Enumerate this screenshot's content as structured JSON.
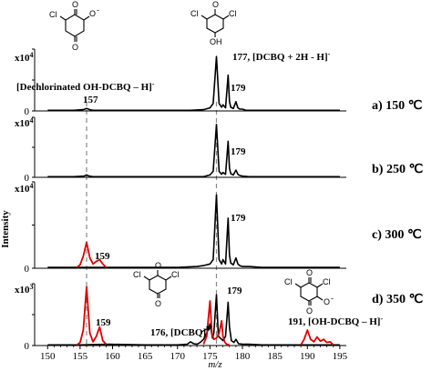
{
  "chart_data": [
    {
      "type": "line",
      "panel": "a",
      "title": "a) 150 ℃",
      "scale": "x10",
      "scale_exp": "4",
      "ylim": [
        0,
        1.0
      ],
      "series": [
        {
          "color": "#000000",
          "x": [
            150,
            152,
            154,
            155.5,
            156,
            156.5,
            157,
            160,
            170,
            172,
            174,
            175,
            175.5,
            176,
            176.4,
            176.8,
            177,
            177.4,
            177.8,
            178,
            178.2,
            178.6,
            179,
            179.3,
            179.6,
            180,
            180.5,
            181,
            183,
            187,
            190,
            195
          ],
          "y": [
            0.01,
            0.01,
            0.01,
            0.02,
            0.04,
            0.02,
            0.01,
            0.01,
            0.01,
            0.01,
            0.02,
            0.05,
            0.12,
            0.88,
            0.12,
            0.06,
            0.1,
            0.05,
            0.58,
            0.15,
            0.06,
            0.04,
            0.15,
            0.05,
            0.03,
            0.03,
            0.01,
            0.01,
            0.01,
            0.01,
            0.01,
            0.01
          ]
        }
      ],
      "annotations": [
        {
          "text": "177, [DCBQ + 2H - H]",
          "sup": "-"
        },
        {
          "text": "179"
        },
        {
          "text": "[Dechlorinated  OH-DCBQ – H]",
          "sup": "-"
        },
        {
          "text": "157"
        }
      ]
    },
    {
      "type": "line",
      "panel": "b",
      "title": "b) 250 ℃",
      "scale": "x10",
      "scale_exp": "4",
      "ylim": [
        0,
        1.0
      ],
      "series": [
        {
          "color": "#000000",
          "x": [
            150,
            154,
            155.6,
            156,
            156.4,
            157,
            170,
            174,
            175,
            175.5,
            176,
            176.4,
            176.8,
            177,
            177.4,
            177.8,
            178,
            178.2,
            178.6,
            179,
            179.3,
            179.6,
            180,
            181,
            195
          ],
          "y": [
            0.01,
            0.01,
            0.02,
            0.04,
            0.02,
            0.01,
            0.01,
            0.01,
            0.04,
            0.1,
            0.88,
            0.1,
            0.05,
            0.08,
            0.05,
            0.6,
            0.15,
            0.06,
            0.04,
            0.12,
            0.05,
            0.03,
            0.02,
            0.01,
            0.01
          ]
        }
      ],
      "annotations": [
        {
          "text": "179"
        }
      ]
    },
    {
      "type": "line",
      "panel": "c",
      "title": "c) 300 ℃",
      "scale": "x10",
      "scale_exp": "4",
      "ylim": [
        0,
        1.0
      ],
      "series": [
        {
          "color": "#000000",
          "x": [
            150,
            154,
            155,
            158.5,
            160,
            170,
            173,
            174,
            175,
            175.5,
            176,
            176.4,
            176.8,
            177,
            177.4,
            177.8,
            178,
            178.2,
            178.6,
            179,
            179.3,
            179.6,
            180,
            181,
            183,
            195
          ],
          "y": [
            0.01,
            0.01,
            0.01,
            0.01,
            0.01,
            0.01,
            0.02,
            0.03,
            0.05,
            0.1,
            0.85,
            0.1,
            0.05,
            0.1,
            0.05,
            0.58,
            0.15,
            0.06,
            0.04,
            0.12,
            0.05,
            0.03,
            0.02,
            0.02,
            0.01,
            0.01
          ]
        },
        {
          "color": "#e00000",
          "x": [
            154.5,
            155,
            155.5,
            156,
            156.5,
            157,
            157.5,
            158,
            158.5,
            159
          ],
          "y": [
            0.01,
            0.04,
            0.14,
            0.3,
            0.12,
            0.05,
            0.08,
            0.1,
            0.05,
            0.01
          ]
        }
      ],
      "annotations": [
        {
          "text": "159"
        },
        {
          "text": "179"
        }
      ]
    },
    {
      "type": "line",
      "panel": "d",
      "title": "d) 350 ℃",
      "scale": "x10",
      "scale_exp": "3",
      "ylim": [
        0,
        1.0
      ],
      "series": [
        {
          "color": "#000000",
          "x": [
            150,
            152,
            155,
            159.5,
            165,
            170,
            171.5,
            172,
            172.5,
            173,
            173.5,
            174,
            174.5,
            175,
            175.4,
            175.6,
            176,
            176.3,
            176.6,
            177,
            177.4,
            177.8,
            178,
            178.3,
            178.7,
            179,
            179.4,
            180,
            181,
            183,
            186,
            188,
            189,
            195
          ],
          "y": [
            0.01,
            0.01,
            0.01,
            0.02,
            0.01,
            0.01,
            0.02,
            0.06,
            0.03,
            0.02,
            0.05,
            0.1,
            0.2,
            0.35,
            0.12,
            0.2,
            0.82,
            0.15,
            0.12,
            0.08,
            0.15,
            0.7,
            0.3,
            0.08,
            0.05,
            0.1,
            0.03,
            0.02,
            0.02,
            0.01,
            0.01,
            0.01,
            0.01,
            0.01
          ]
        },
        {
          "color": "#e00000",
          "x": [
            154.5,
            155,
            155.5,
            156,
            156.5,
            157,
            157.5,
            158,
            158.5,
            159
          ],
          "y": [
            0.01,
            0.05,
            0.25,
            0.95,
            0.2,
            0.06,
            0.15,
            0.3,
            0.08,
            0.02
          ]
        },
        {
          "color": "#e00000",
          "x": [
            174,
            174.5,
            175,
            175.3,
            175.6,
            176,
            176.4,
            176.8,
            177,
            177.3,
            177.6,
            178
          ],
          "y": [
            0.02,
            0.15,
            0.72,
            0.2,
            0.1,
            0.12,
            0.2,
            0.4,
            0.15,
            0.05,
            0.02,
            0.01
          ]
        },
        {
          "color": "#e00000",
          "x": [
            189,
            189.5,
            190,
            190.5,
            191,
            191.5,
            192,
            192.5,
            193,
            193.5,
            194
          ],
          "y": [
            0.01,
            0.1,
            0.25,
            0.1,
            0.06,
            0.14,
            0.07,
            0.1,
            0.05,
            0.06,
            0.01
          ]
        }
      ],
      "annotations": [
        {
          "text": "159"
        },
        {
          "text": "179"
        },
        {
          "text": "176, [DCBQ]",
          "sup": "-"
        },
        {
          "text": "191, [OH-DCBQ – H]",
          "sup": "-"
        }
      ]
    }
  ],
  "shared_axis": {
    "xlim": [
      148,
      196
    ],
    "xticks": [
      "150",
      "155",
      "160",
      "165",
      "170",
      "175",
      "180",
      "185",
      "190",
      "195"
    ],
    "xtick_values": [
      150,
      155,
      160,
      165,
      170,
      175,
      180,
      185,
      190,
      195
    ],
    "xlabel": "m/z",
    "ylabel": "Intensity",
    "dashed_markers": [
      156,
      176
    ],
    "y_zero_label": "0"
  },
  "structures": {
    "top_left": {
      "cl": "Cl",
      "o": "O",
      "o_minus": "O",
      "minus": "-"
    },
    "top_center": {
      "cl_left": "Cl",
      "cl_right": "Cl",
      "o_top": "O",
      "oh": "OH"
    },
    "bottom_left": {
      "cl_left": "Cl",
      "cl_right": "Cl",
      "o_top": "O",
      "o_bottom": "O"
    },
    "bottom_right": {
      "cl_left": "Cl",
      "cl_right": "Cl",
      "o_top": "O",
      "o_bottom": "O",
      "o_minus": "O"
    }
  },
  "colors": {
    "black_trace": "#000000",
    "red_trace": "#e00000",
    "dashed": "#888888"
  }
}
